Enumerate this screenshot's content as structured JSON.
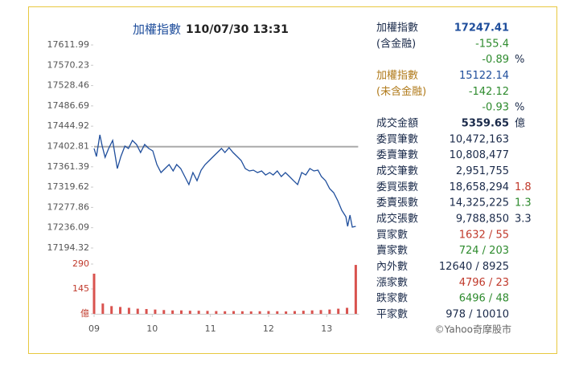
{
  "chart_data": {
    "type": "line",
    "title": "加權指數",
    "subtitle": "110/07/30 13:31",
    "xlim": [
      9,
      13.5
    ],
    "xticks": [
      {
        "value": 9,
        "label": "09"
      },
      10,
      11,
      12,
      13
    ],
    "ylim": [
      17194.32,
      17611.99
    ],
    "yticks": [
      17611.99,
      17570.23,
      17528.46,
      17486.69,
      17444.92,
      17402.81,
      17361.39,
      17319.62,
      17277.86,
      17236.09,
      17194.32
    ],
    "y2lim": [
      0,
      290
    ],
    "y2ticks": [
      {
        "value": 0,
        "label": "億"
      },
      145,
      290
    ],
    "reference_line": 17402.81,
    "grid": false,
    "series": [
      {
        "color": "#1f4e9c",
        "x": [
          9.0,
          9.04,
          9.1,
          9.14,
          9.19,
          9.25,
          9.32,
          9.4,
          9.46,
          9.53,
          9.59,
          9.66,
          9.73,
          9.8,
          9.87,
          9.94,
          10.01,
          10.08,
          10.15,
          10.22,
          10.29,
          10.36,
          10.42,
          10.49,
          10.56,
          10.63,
          10.7,
          10.77,
          10.84,
          10.91,
          10.98,
          11.05,
          11.12,
          11.19,
          11.25,
          11.32,
          11.39,
          11.46,
          11.53,
          11.6,
          11.67,
          11.74,
          11.81,
          11.88,
          11.95,
          12.02,
          12.08,
          12.15,
          12.22,
          12.29,
          12.36,
          12.43,
          12.5,
          12.57,
          12.64,
          12.71,
          12.78,
          12.85,
          12.91,
          12.98,
          13.05,
          13.12,
          13.19,
          13.26,
          13.33,
          13.36,
          13.4,
          13.44,
          13.5
        ],
        "values": [
          17399.0,
          17382.5,
          17427.1,
          17403.9,
          17380.9,
          17399.0,
          17415.5,
          17357.7,
          17382.5,
          17403.9,
          17399.0,
          17415.5,
          17407.3,
          17390.8,
          17407.3,
          17399.0,
          17394.1,
          17366.0,
          17349.5,
          17357.7,
          17366.0,
          17352.8,
          17366.0,
          17357.7,
          17341.2,
          17324.7,
          17349.5,
          17332.9,
          17354.4,
          17366.0,
          17374.2,
          17382.5,
          17390.8,
          17399.0,
          17390.8,
          17400.7,
          17390.8,
          17382.5,
          17374.2,
          17357.7,
          17352.8,
          17354.4,
          17349.5,
          17352.8,
          17344.5,
          17349.5,
          17344.5,
          17352.8,
          17341.2,
          17349.5,
          17341.2,
          17332.9,
          17324.7,
          17349.5,
          17344.5,
          17357.7,
          17352.8,
          17354.4,
          17341.2,
          17332.9,
          17316.5,
          17308.2,
          17291.7,
          17271.9,
          17258.7,
          17238.9,
          17262.0,
          17237.2,
          17238.9
        ]
      },
      {
        "type": "bar",
        "axis": "y2",
        "color": "#d9534f",
        "x": [
          9.0,
          9.15,
          9.3,
          9.45,
          9.6,
          9.75,
          9.9,
          10.05,
          10.2,
          10.35,
          10.5,
          10.65,
          10.8,
          10.95,
          11.1,
          11.25,
          11.4,
          11.55,
          11.7,
          11.85,
          12.0,
          12.15,
          12.3,
          12.45,
          12.6,
          12.75,
          12.9,
          13.05,
          13.2,
          13.35,
          13.5
        ],
        "values": [
          234,
          60,
          45,
          40,
          35,
          30,
          28,
          25,
          22,
          20,
          20,
          18,
          18,
          17,
          16,
          15,
          16,
          15,
          14,
          15,
          16,
          15,
          14,
          16,
          18,
          20,
          22,
          25,
          30,
          35,
          285
        ]
      }
    ]
  },
  "panel": {
    "rows": [
      {
        "label": "加權指數",
        "value": "17247.41",
        "color": "#1f4e9c"
      },
      {
        "label": "(含金融)",
        "value": "-155.4",
        "color": "#2e8b2e"
      },
      {
        "value": "-0.89",
        "suffix": "%",
        "color": "#2e8b2e"
      },
      {
        "label": "加權指數",
        "label_color": "#b07a1a",
        "value": "15122.14",
        "color": "#1f4e9c"
      },
      {
        "label": "(未含金融)",
        "label_color": "#b07a1a",
        "value": "-142.12",
        "color": "#2e8b2e"
      },
      {
        "value": "-0.93",
        "suffix": "%",
        "color": "#2e8b2e"
      },
      {
        "label": "成交金額",
        "value": "5359.65",
        "suffix": "億",
        "color": "#1a2a4a"
      },
      {
        "label": "委買筆數",
        "value": "10,472,163",
        "color": "#1a2a4a"
      },
      {
        "label": "委賣筆數",
        "value": "10,808,477",
        "color": "#1a2a4a"
      },
      {
        "label": "成交筆數",
        "value": "2,951,755",
        "color": "#1a2a4a"
      },
      {
        "label": "委買張數",
        "value": "18,658,294",
        "suffix": "1.8",
        "suffix_color": "#c0392b",
        "color": "#1a2a4a"
      },
      {
        "label": "委賣張數",
        "value": "14,325,225",
        "suffix": "1.3",
        "suffix_color": "#2e8b2e",
        "color": "#1a2a4a"
      },
      {
        "label": "成交張數",
        "value": "9,788,850",
        "suffix": "3.3",
        "color": "#1a2a4a"
      },
      {
        "label": "買家數",
        "value": "1632 / 55",
        "color": "#c0392b"
      },
      {
        "label": "賣家數",
        "value": "724 / 203",
        "color": "#2e8b2e"
      },
      {
        "label": "內外數",
        "value": "12640 / 8925",
        "color": "#1a2a4a"
      },
      {
        "label": "漲家數",
        "value": "4796 / 23",
        "color": "#c0392b"
      },
      {
        "label": "跌家數",
        "value": "6496 / 48",
        "color": "#2e8b2e"
      },
      {
        "label": "平家數",
        "value": "978 / 10010",
        "color": "#1a2a4a"
      }
    ],
    "footer": "©Yahoo奇摩股市"
  }
}
